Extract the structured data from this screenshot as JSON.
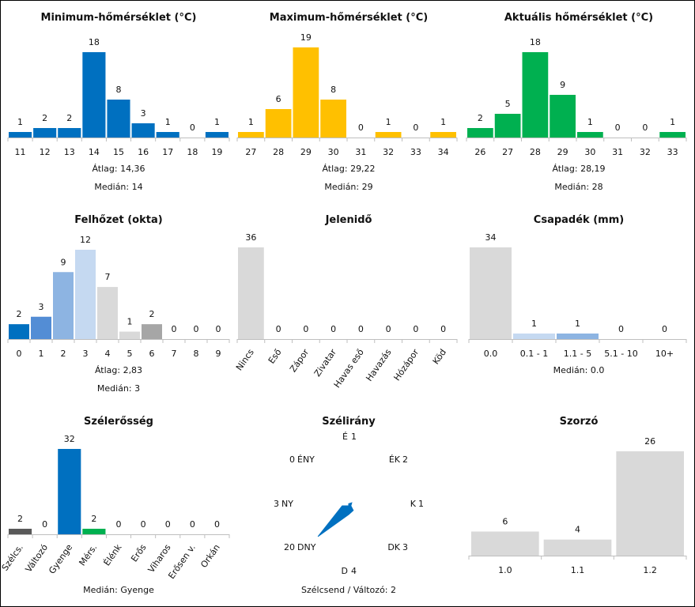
{
  "colors": {
    "blue": "#0070C0",
    "yellow": "#FFC000",
    "green": "#00B050",
    "grey": "#D9D9D9",
    "darkgrey": "#595959",
    "midgrey": "#A6A6A6",
    "lightblue": "#C5D9F1",
    "midblue": "#8DB4E2",
    "medblue": "#538DD5"
  },
  "charts": {
    "minTemp": {
      "chart_data": {
        "type": "bar",
        "title": "Minimum-hőmérséklet (°C)",
        "categories": [
          "11",
          "12",
          "13",
          "14",
          "15",
          "16",
          "17",
          "18",
          "19"
        ],
        "values": [
          1,
          2,
          2,
          18,
          8,
          3,
          1,
          0,
          1
        ],
        "ylim": [
          0,
          19
        ]
      },
      "stats": [
        "Átlag: 14,36",
        "Medián: 14"
      ]
    },
    "maxTemp": {
      "chart_data": {
        "type": "bar",
        "title": "Maximum-hőmérséklet (°C)",
        "categories": [
          "27",
          "28",
          "29",
          "30",
          "31",
          "32",
          "33",
          "34"
        ],
        "values": [
          1,
          6,
          19,
          8,
          0,
          1,
          0,
          1
        ],
        "ylim": [
          0,
          19
        ]
      },
      "stats": [
        "Átlag: 29,22",
        "Medián: 29"
      ]
    },
    "curTemp": {
      "chart_data": {
        "type": "bar",
        "title": "Aktuális hőmérséklet (°C)",
        "categories": [
          "26",
          "27",
          "28",
          "29",
          "30",
          "31",
          "32",
          "33"
        ],
        "values": [
          2,
          5,
          18,
          9,
          1,
          0,
          0,
          1
        ],
        "ylim": [
          0,
          19
        ]
      },
      "stats": [
        "Átlag: 28,19",
        "Medián: 28"
      ]
    },
    "cloud": {
      "chart_data": {
        "type": "bar",
        "title": "Felhőzet (okta)",
        "categories": [
          "0",
          "1",
          "2",
          "3",
          "4",
          "5",
          "6",
          "7",
          "8",
          "9"
        ],
        "values": [
          2,
          3,
          9,
          12,
          7,
          1,
          2,
          0,
          0,
          0
        ],
        "ylim": [
          0,
          12
        ]
      },
      "stats": [
        "Átlag: 2,83",
        "Medián: 3"
      ]
    },
    "weather": {
      "chart_data": {
        "type": "bar",
        "title": "Jelenidő",
        "categories": [
          "Nincs",
          "Eső",
          "Zápor",
          "Zivatar",
          "Havas eső",
          "Havazás",
          "Hózápor",
          "Köd"
        ],
        "values": [
          36,
          0,
          0,
          0,
          0,
          0,
          0,
          0
        ],
        "ylim": [
          0,
          36
        ]
      },
      "stats": []
    },
    "precip": {
      "chart_data": {
        "type": "bar",
        "title": "Csapadék (mm)",
        "categories": [
          "0.0",
          "0.1 - 1",
          "1.1 - 5",
          "5.1 - 10",
          "10+"
        ],
        "values": [
          34,
          1,
          1,
          0,
          0
        ],
        "ylim": [
          0,
          34
        ]
      },
      "stats": [
        "Medián: 0.0"
      ]
    },
    "wind": {
      "chart_data": {
        "type": "bar",
        "title": "Szélerősség",
        "categories": [
          "Szélcs.",
          "Változó",
          "Gyenge",
          "Mérs.",
          "Élénk",
          "Erős",
          "Viharos",
          "Erősen v.",
          "Orkán"
        ],
        "values": [
          2,
          0,
          32,
          2,
          0,
          0,
          0,
          0,
          0
        ],
        "ylim": [
          0,
          32
        ]
      },
      "stats": [
        "Medián: Gyenge"
      ]
    },
    "windDir": {
      "chart_data": {
        "type": "radar",
        "title": "Szélirány",
        "directions": [
          "É",
          "ÉK",
          "K",
          "DK",
          "D",
          "DNY",
          "NY",
          "ÉNY"
        ],
        "values": [
          1,
          2,
          1,
          3,
          4,
          20,
          3,
          0
        ]
      },
      "stats": [
        "Szélcsend / Változó: 2"
      ]
    },
    "mult": {
      "chart_data": {
        "type": "bar",
        "title": "Szorzó",
        "categories": [
          "1.0",
          "1.1",
          "1.2"
        ],
        "values": [
          6,
          4,
          26
        ],
        "ylim": [
          0,
          26
        ]
      },
      "stats": []
    }
  }
}
